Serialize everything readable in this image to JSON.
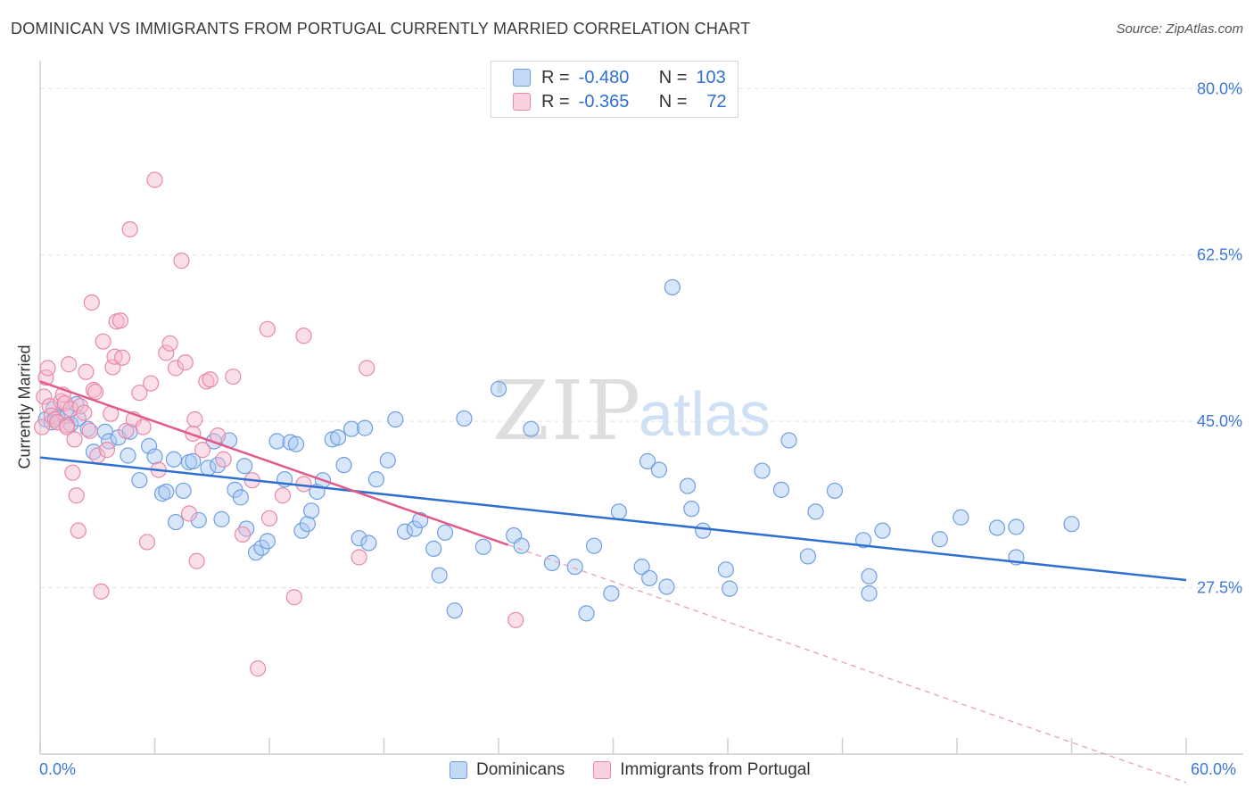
{
  "title": "DOMINICAN VS IMMIGRANTS FROM PORTUGAL CURRENTLY MARRIED CORRELATION CHART",
  "source": "Source: ZipAtlas.com",
  "watermark": {
    "zip": "ZIP",
    "atlas": "atlas"
  },
  "legend": {
    "rows": [
      {
        "r_label": "R =",
        "r_value": "-0.480",
        "n_label": "N =",
        "n_value": "103",
        "color": "#a9c8f3"
      },
      {
        "r_label": "R =",
        "r_value": "-0.365",
        "n_label": "N =",
        "n_value": "72",
        "color": "#f6b9cc"
      }
    ]
  },
  "chart_data": {
    "type": "scatter",
    "title": "DOMINICAN VS IMMIGRANTS FROM PORTUGAL CURRENTLY MARRIED CORRELATION CHART",
    "xlabel": "",
    "ylabel": "Currently Married",
    "xlim": [
      0,
      60
    ],
    "ylim": [
      10,
      82
    ],
    "x_tick_labels": [
      "0.0%",
      "60.0%"
    ],
    "y_ticks": [
      27.5,
      45.0,
      62.5,
      80.0
    ],
    "y_tick_labels": [
      "27.5%",
      "45.0%",
      "62.5%",
      "80.0%"
    ],
    "grid": true,
    "legend_position": "top-center",
    "series": [
      {
        "name": "Dominicans",
        "color": "#a9c8f3",
        "stroke": "#6f9fe0",
        "trend": {
          "x": [
            0,
            60
          ],
          "y": [
            41.2,
            28.3
          ],
          "color": "#2e6fd0",
          "style": "solid"
        },
        "points": [
          [
            0.3,
            45.2
          ],
          [
            0.7,
            46.3
          ],
          [
            0.9,
            45.4
          ],
          [
            1.4,
            45.6
          ],
          [
            1.9,
            46.8
          ],
          [
            1.6,
            44.7
          ],
          [
            2.5,
            44.2
          ],
          [
            2.8,
            41.8
          ],
          [
            3.4,
            43.9
          ],
          [
            3.6,
            42.9
          ],
          [
            4.1,
            43.3
          ],
          [
            4.6,
            41.4
          ],
          [
            4.7,
            43.9
          ],
          [
            5.2,
            38.8
          ],
          [
            5.7,
            42.4
          ],
          [
            6.0,
            41.3
          ],
          [
            6.4,
            37.4
          ],
          [
            6.6,
            37.6
          ],
          [
            7.0,
            41.0
          ],
          [
            7.1,
            34.4
          ],
          [
            7.5,
            37.7
          ],
          [
            7.8,
            40.7
          ],
          [
            8.0,
            40.8
          ],
          [
            8.3,
            34.6
          ],
          [
            8.8,
            40.1
          ],
          [
            9.1,
            42.9
          ],
          [
            9.3,
            40.4
          ],
          [
            9.5,
            34.7
          ],
          [
            9.9,
            43.0
          ],
          [
            10.2,
            37.8
          ],
          [
            10.5,
            37.0
          ],
          [
            10.7,
            40.3
          ],
          [
            10.8,
            33.7
          ],
          [
            11.3,
            31.2
          ],
          [
            11.6,
            31.7
          ],
          [
            11.9,
            32.4
          ],
          [
            12.4,
            42.9
          ],
          [
            12.8,
            38.9
          ],
          [
            13.1,
            42.8
          ],
          [
            13.4,
            42.6
          ],
          [
            13.7,
            33.5
          ],
          [
            14.0,
            34.2
          ],
          [
            14.2,
            35.6
          ],
          [
            14.5,
            37.6
          ],
          [
            14.8,
            38.8
          ],
          [
            15.3,
            43.1
          ],
          [
            15.6,
            43.3
          ],
          [
            15.9,
            40.4
          ],
          [
            16.3,
            44.2
          ],
          [
            16.7,
            32.7
          ],
          [
            17.0,
            44.3
          ],
          [
            17.2,
            32.2
          ],
          [
            17.6,
            38.9
          ],
          [
            18.2,
            40.9
          ],
          [
            18.6,
            45.2
          ],
          [
            19.1,
            33.4
          ],
          [
            19.6,
            33.7
          ],
          [
            19.9,
            34.6
          ],
          [
            20.6,
            31.6
          ],
          [
            20.9,
            28.8
          ],
          [
            21.2,
            33.3
          ],
          [
            21.7,
            25.1
          ],
          [
            22.2,
            45.3
          ],
          [
            23.2,
            31.8
          ],
          [
            24.0,
            48.4
          ],
          [
            24.8,
            33.0
          ],
          [
            25.2,
            31.9
          ],
          [
            25.7,
            44.2
          ],
          [
            26.8,
            30.1
          ],
          [
            28.0,
            29.7
          ],
          [
            28.6,
            24.8
          ],
          [
            29.0,
            31.9
          ],
          [
            29.9,
            26.9
          ],
          [
            30.3,
            35.5
          ],
          [
            31.5,
            29.7
          ],
          [
            31.9,
            28.5
          ],
          [
            31.8,
            40.8
          ],
          [
            32.4,
            39.9
          ],
          [
            32.8,
            27.6
          ],
          [
            33.1,
            59.1
          ],
          [
            33.9,
            38.2
          ],
          [
            34.1,
            35.8
          ],
          [
            34.7,
            33.5
          ],
          [
            35.9,
            29.4
          ],
          [
            36.1,
            27.4
          ],
          [
            37.8,
            39.8
          ],
          [
            38.8,
            37.8
          ],
          [
            39.2,
            43.0
          ],
          [
            40.2,
            30.8
          ],
          [
            40.6,
            35.5
          ],
          [
            41.6,
            37.7
          ],
          [
            43.1,
            32.5
          ],
          [
            43.4,
            28.7
          ],
          [
            43.4,
            26.9
          ],
          [
            44.1,
            33.5
          ],
          [
            47.1,
            32.6
          ],
          [
            48.2,
            34.9
          ],
          [
            50.1,
            33.8
          ],
          [
            51.1,
            30.7
          ],
          [
            51.1,
            33.9
          ],
          [
            54.0,
            34.2
          ],
          [
            0.6,
            44.9
          ],
          [
            2.0,
            45.3
          ]
        ]
      },
      {
        "name": "Immigrants from Portugal",
        "color": "#f6b9cc",
        "stroke": "#e68aa8",
        "trend": {
          "x": [
            0,
            24.5
          ],
          "y": [
            49.2,
            32.0
          ],
          "color": "#e15a8a",
          "style": "solid"
        },
        "trend_extension": {
          "x": [
            24.5,
            60
          ],
          "y": [
            32.0,
            7.0
          ],
          "color": "#e9a0b8",
          "style": "dashed"
        },
        "points": [
          [
            0.1,
            44.4
          ],
          [
            0.2,
            47.6
          ],
          [
            0.3,
            49.6
          ],
          [
            0.4,
            50.6
          ],
          [
            0.5,
            46.6
          ],
          [
            0.6,
            45.6
          ],
          [
            0.8,
            45.2
          ],
          [
            0.9,
            44.9
          ],
          [
            1.1,
            47.1
          ],
          [
            1.2,
            47.8
          ],
          [
            1.3,
            46.9
          ],
          [
            1.4,
            44.6
          ],
          [
            1.4,
            44.4
          ],
          [
            1.5,
            51.0
          ],
          [
            1.6,
            46.3
          ],
          [
            1.7,
            39.6
          ],
          [
            1.8,
            43.1
          ],
          [
            1.9,
            37.2
          ],
          [
            2.0,
            33.5
          ],
          [
            2.1,
            46.6
          ],
          [
            2.3,
            45.9
          ],
          [
            2.4,
            50.2
          ],
          [
            2.6,
            44.0
          ],
          [
            2.7,
            57.5
          ],
          [
            2.8,
            48.3
          ],
          [
            2.9,
            48.1
          ],
          [
            3.0,
            41.4
          ],
          [
            3.2,
            27.1
          ],
          [
            3.3,
            53.4
          ],
          [
            3.5,
            42.0
          ],
          [
            3.7,
            45.8
          ],
          [
            3.8,
            50.7
          ],
          [
            3.9,
            51.8
          ],
          [
            4.0,
            55.5
          ],
          [
            4.2,
            55.6
          ],
          [
            4.3,
            51.7
          ],
          [
            4.5,
            44.0
          ],
          [
            4.7,
            65.2
          ],
          [
            4.9,
            45.2
          ],
          [
            5.2,
            48.0
          ],
          [
            5.4,
            44.4
          ],
          [
            5.6,
            32.3
          ],
          [
            5.8,
            49.0
          ],
          [
            6.0,
            70.4
          ],
          [
            6.2,
            39.9
          ],
          [
            6.6,
            52.2
          ],
          [
            6.8,
            53.2
          ],
          [
            7.1,
            50.6
          ],
          [
            7.4,
            61.9
          ],
          [
            7.6,
            51.2
          ],
          [
            7.8,
            35.3
          ],
          [
            8.0,
            43.7
          ],
          [
            8.1,
            45.2
          ],
          [
            8.2,
            30.3
          ],
          [
            8.5,
            42.0
          ],
          [
            8.7,
            49.2
          ],
          [
            8.9,
            49.4
          ],
          [
            9.3,
            43.5
          ],
          [
            9.6,
            41.0
          ],
          [
            10.1,
            49.7
          ],
          [
            10.6,
            33.1
          ],
          [
            11.1,
            38.8
          ],
          [
            11.4,
            19.0
          ],
          [
            11.9,
            54.7
          ],
          [
            12.0,
            34.8
          ],
          [
            12.7,
            37.2
          ],
          [
            13.3,
            26.5
          ],
          [
            13.8,
            54.0
          ],
          [
            13.8,
            38.4
          ],
          [
            16.7,
            30.7
          ],
          [
            17.1,
            50.6
          ],
          [
            24.9,
            24.1
          ]
        ]
      }
    ]
  },
  "bottom_legend": {
    "items": [
      {
        "label": "Dominicans",
        "color": "#a9c8f3"
      },
      {
        "label": "Immigrants from Portugal",
        "color": "#f6b9cc"
      }
    ]
  }
}
